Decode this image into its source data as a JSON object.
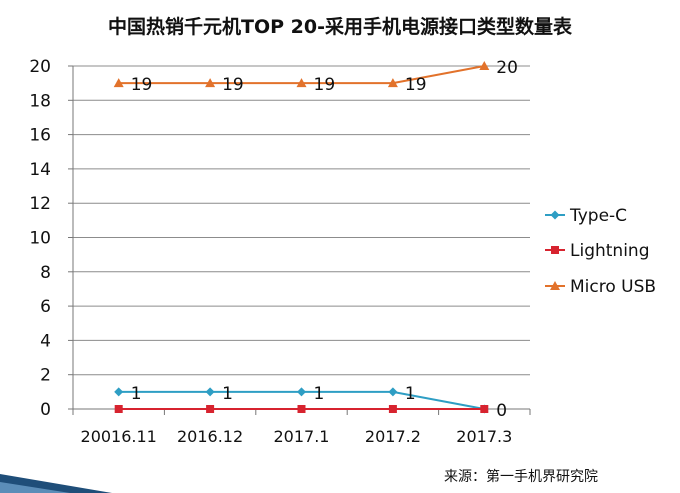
{
  "title": "中国热销千元机TOP  20-采用手机电源接口类型数量表",
  "source": "来源：第一手机界研究院",
  "colors": {
    "type_c": "#2E9EC4",
    "lightning": "#D7232F",
    "micro_usb": "#E2722B",
    "grid": "#8C8C8C",
    "axis": "#777777",
    "accent_bar": "#1F4E79"
  },
  "chart_data": {
    "type": "line",
    "categories": [
      "20016.11",
      "2016.12",
      "2017.1",
      "2017.2",
      "2017.3"
    ],
    "ylim": [
      0,
      20
    ],
    "yticks": [
      0,
      2,
      4,
      6,
      8,
      10,
      12,
      14,
      16,
      18,
      20
    ],
    "grid": true,
    "legend": "right",
    "series": [
      {
        "name": "Type-C",
        "values": [
          1,
          1,
          1,
          1,
          0
        ],
        "marker": "diamond",
        "color": "#2E9EC4",
        "labels": [
          "1",
          "1",
          "1",
          "1",
          "0"
        ]
      },
      {
        "name": "Lightning",
        "values": [
          0,
          0,
          0,
          0,
          0
        ],
        "marker": "square",
        "color": "#D7232F",
        "labels": [
          "",
          "",
          "",
          "",
          ""
        ]
      },
      {
        "name": "Micro USB",
        "values": [
          19,
          19,
          19,
          19,
          20
        ],
        "marker": "triangle",
        "color": "#E2722B",
        "labels": [
          "19",
          "19",
          "19",
          "19",
          "20"
        ]
      }
    ]
  }
}
